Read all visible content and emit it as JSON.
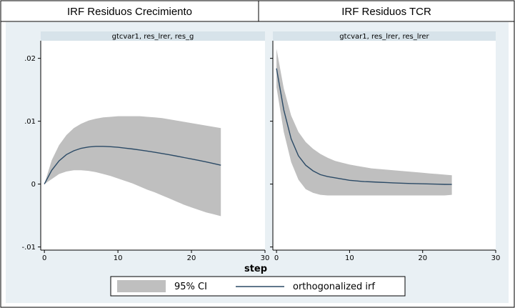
{
  "chart_data": {
    "type": "line",
    "column_titles": [
      "IRF  Residuos Crecimiento",
      "IRF  Residuos TCR"
    ],
    "shared_xlabel": "step",
    "panels": [
      {
        "subtitle": "gtcvar1, res_lrer, res_g",
        "x_ticks": [
          0,
          10,
          20,
          30
        ],
        "x_tick_labels": [
          "0",
          "10",
          "20",
          "30"
        ],
        "y_ticks": [
          -0.01,
          0,
          0.01,
          0.02
        ],
        "y_tick_labels": [
          "-.01",
          "0",
          ".01",
          ".02"
        ],
        "xlim": [
          -0.5,
          30
        ],
        "ylim": [
          -0.0105,
          0.0228
        ],
        "x": [
          0,
          1,
          2,
          3,
          4,
          5,
          6,
          7,
          8,
          9,
          10,
          11,
          12,
          13,
          14,
          15,
          16,
          17,
          18,
          19,
          20,
          21,
          22,
          23,
          24
        ],
        "irf": [
          0,
          0.0022,
          0.0037,
          0.0047,
          0.0053,
          0.0057,
          0.0059,
          0.006,
          0.006,
          0.00595,
          0.00585,
          0.00572,
          0.00558,
          0.00542,
          0.00525,
          0.00506,
          0.00487,
          0.00466,
          0.00444,
          0.00422,
          0.004,
          0.00377,
          0.00352,
          0.00327,
          0.003
        ],
        "ci_lower": [
          0,
          0.0008,
          0.0016,
          0.002,
          0.0022,
          0.0022,
          0.0021,
          0.0019,
          0.0016,
          0.0013,
          0.0009,
          0.0005,
          0.0001,
          -0.0004,
          -0.0009,
          -0.0013,
          -0.0018,
          -0.0023,
          -0.0028,
          -0.0033,
          -0.0037,
          -0.0041,
          -0.0045,
          -0.0048,
          -0.0051
        ],
        "ci_upper": [
          0,
          0.0038,
          0.0062,
          0.0078,
          0.0089,
          0.0096,
          0.0101,
          0.0104,
          0.0106,
          0.0107,
          0.0108,
          0.0108,
          0.0108,
          0.0108,
          0.0107,
          0.0106,
          0.0105,
          0.0103,
          0.0101,
          0.0099,
          0.0097,
          0.0095,
          0.0093,
          0.0091,
          0.0089
        ]
      },
      {
        "subtitle": "gtcvar1, res_lrer, res_lrer",
        "x_ticks": [
          0,
          10,
          20,
          30
        ],
        "x_tick_labels": [
          "0",
          "10",
          "20",
          "30"
        ],
        "y_ticks": [
          -0.01,
          0,
          0.01,
          0.02
        ],
        "y_tick_labels": [
          "-.01",
          "0",
          ".01",
          ".02"
        ],
        "xlim": [
          -0.5,
          30
        ],
        "ylim": [
          -0.0105,
          0.0228
        ],
        "x": [
          0,
          1,
          2,
          3,
          4,
          5,
          6,
          7,
          8,
          9,
          10,
          11,
          12,
          13,
          14,
          15,
          16,
          17,
          18,
          19,
          20,
          21,
          22,
          23,
          24
        ],
        "irf": [
          0.0184,
          0.0118,
          0.0072,
          0.0045,
          0.003,
          0.0021,
          0.0015,
          0.0012,
          0.001,
          0.0008,
          0.0006,
          0.0005,
          0.0004,
          0.00035,
          0.0003,
          0.00025,
          0.0002,
          0.00015,
          0.0001,
          8e-05,
          5e-05,
          2e-05,
          -1e-05,
          -4e-05,
          -6e-05
        ],
        "ci_lower": [
          0.0154,
          0.0083,
          0.0035,
          0.0007,
          -0.0008,
          -0.0014,
          -0.0017,
          -0.0018,
          -0.0018,
          -0.0018,
          -0.0018,
          -0.0018,
          -0.0018,
          -0.0018,
          -0.0018,
          -0.0018,
          -0.0018,
          -0.0018,
          -0.0018,
          -0.0018,
          -0.0018,
          -0.0018,
          -0.0018,
          -0.0018,
          -0.0017
        ],
        "ci_upper": [
          0.0215,
          0.0152,
          0.0109,
          0.0083,
          0.0067,
          0.0056,
          0.0048,
          0.0042,
          0.0037,
          0.0034,
          0.0031,
          0.0029,
          0.0027,
          0.0025,
          0.0024,
          0.0023,
          0.0022,
          0.0021,
          0.002,
          0.0019,
          0.0018,
          0.0017,
          0.0016,
          0.0015,
          0.0014
        ]
      }
    ],
    "legend": [
      {
        "label": "95% CI",
        "kind": "area"
      },
      {
        "label": "orthogonalized irf",
        "kind": "line"
      }
    ],
    "colors": {
      "ci_fill": "#bfbfbf",
      "irf_line": "#2b4a66",
      "plot_bg": "#ffffff",
      "outer_bg": "#e9f0f4",
      "subtitle_bg": "#d7e3ea",
      "axis": "#000000"
    }
  }
}
